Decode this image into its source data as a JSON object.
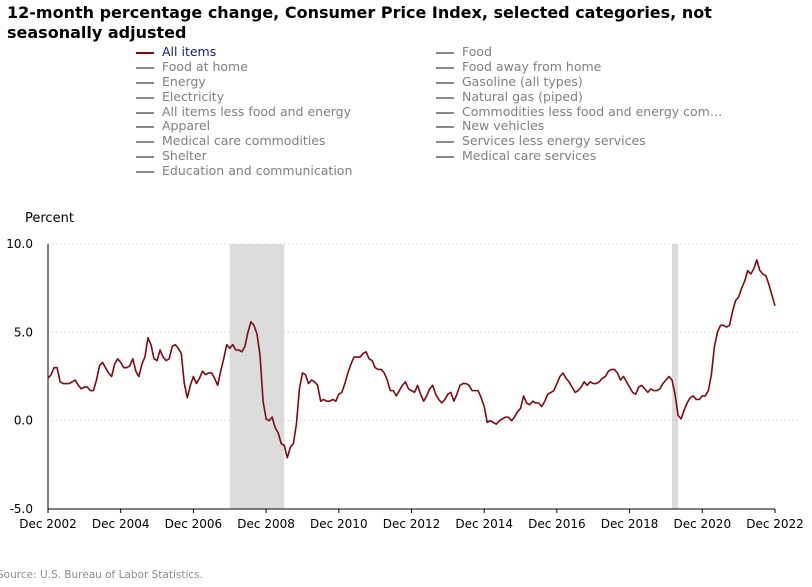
{
  "title": "12-month percentage change, Consumer Price Index, selected categories, not seasonally adjusted",
  "source": "Source: U.S. Bureau of Labor Statistics.",
  "legend": {
    "left": [
      {
        "label": "All items",
        "active": true
      },
      {
        "label": "Food at home",
        "active": false
      },
      {
        "label": "Energy",
        "active": false
      },
      {
        "label": "Electricity",
        "active": false
      },
      {
        "label": "All items less food and energy",
        "active": false
      },
      {
        "label": "Apparel",
        "active": false
      },
      {
        "label": "Medical care commodities",
        "active": false
      },
      {
        "label": "Shelter",
        "active": false
      },
      {
        "label": "Education and communication",
        "active": false
      }
    ],
    "right": [
      {
        "label": "Food",
        "active": false
      },
      {
        "label": "Food away from home",
        "active": false
      },
      {
        "label": "Gasoline (all types)",
        "active": false
      },
      {
        "label": "Natural gas (piped)",
        "active": false
      },
      {
        "label": "Commodities less food and energy com…",
        "active": false
      },
      {
        "label": "New vehicles",
        "active": false
      },
      {
        "label": "Services less energy services",
        "active": false
      },
      {
        "label": "Medical care services",
        "active": false
      }
    ]
  },
  "colors": {
    "series": "#7b0a17",
    "recession": "#dcdcdc",
    "grid": "#c8c8c8",
    "axis": "#000000",
    "legend_active_text": "#1a1a6e",
    "legend_inactive": "#808080"
  },
  "chart_data": {
    "type": "line",
    "ylabel": "Percent",
    "ylim": [
      -5.0,
      10.0
    ],
    "yticks": [
      "10.0",
      "5.0",
      "0.0",
      "-5.0"
    ],
    "ytick_values": [
      10.0,
      5.0,
      0.0,
      -5.0
    ],
    "xlim": [
      "Dec 2002",
      "Dec 2022"
    ],
    "xticks": [
      "Dec 2002",
      "Dec 2004",
      "Dec 2006",
      "Dec 2008",
      "Dec 2010",
      "Dec 2012",
      "Dec 2014",
      "Dec 2016",
      "Dec 2018",
      "Dec 2020",
      "Dec 2022"
    ],
    "grid": "horizontal dotted",
    "recessions": [
      {
        "start": "Dec 2007",
        "end": "Jun 2009"
      },
      {
        "start": "Feb 2020",
        "end": "Apr 2020"
      }
    ],
    "series": [
      {
        "name": "All items",
        "points": [
          [
            "Dec 2002",
            2.4
          ],
          [
            "Jan 2003",
            2.6
          ],
          [
            "Feb 2003",
            3.0
          ],
          [
            "Mar 2003",
            3.0
          ],
          [
            "Apr 2003",
            2.2
          ],
          [
            "May 2003",
            2.1
          ],
          [
            "Jun 2003",
            2.1
          ],
          [
            "Jul 2003",
            2.1
          ],
          [
            "Aug 2003",
            2.2
          ],
          [
            "Sep 2003",
            2.3
          ],
          [
            "Oct 2003",
            2.0
          ],
          [
            "Nov 2003",
            1.8
          ],
          [
            "Dec 2003",
            1.9
          ],
          [
            "Jan 2004",
            1.9
          ],
          [
            "Feb 2004",
            1.7
          ],
          [
            "Mar 2004",
            1.7
          ],
          [
            "Apr 2004",
            2.3
          ],
          [
            "May 2004",
            3.1
          ],
          [
            "Jun 2004",
            3.3
          ],
          [
            "Jul 2004",
            3.0
          ],
          [
            "Aug 2004",
            2.7
          ],
          [
            "Sep 2004",
            2.5
          ],
          [
            "Oct 2004",
            3.2
          ],
          [
            "Nov 2004",
            3.5
          ],
          [
            "Dec 2004",
            3.3
          ],
          [
            "Jan 2005",
            3.0
          ],
          [
            "Feb 2005",
            3.0
          ],
          [
            "Mar 2005",
            3.1
          ],
          [
            "Apr 2005",
            3.5
          ],
          [
            "May 2005",
            2.8
          ],
          [
            "Jun 2005",
            2.5
          ],
          [
            "Jul 2005",
            3.2
          ],
          [
            "Aug 2005",
            3.6
          ],
          [
            "Sep 2005",
            4.7
          ],
          [
            "Oct 2005",
            4.3
          ],
          [
            "Nov 2005",
            3.5
          ],
          [
            "Dec 2005",
            3.4
          ],
          [
            "Jan 2006",
            4.0
          ],
          [
            "Feb 2006",
            3.6
          ],
          [
            "Mar 2006",
            3.4
          ],
          [
            "Apr 2006",
            3.5
          ],
          [
            "May 2006",
            4.2
          ],
          [
            "Jun 2006",
            4.3
          ],
          [
            "Jul 2006",
            4.1
          ],
          [
            "Aug 2006",
            3.8
          ],
          [
            "Sep 2006",
            2.1
          ],
          [
            "Oct 2006",
            1.3
          ],
          [
            "Nov 2006",
            2.0
          ],
          [
            "Dec 2006",
            2.5
          ],
          [
            "Jan 2007",
            2.1
          ],
          [
            "Feb 2007",
            2.4
          ],
          [
            "Mar 2007",
            2.8
          ],
          [
            "Apr 2007",
            2.6
          ],
          [
            "May 2007",
            2.7
          ],
          [
            "Jun 2007",
            2.7
          ],
          [
            "Jul 2007",
            2.4
          ],
          [
            "Aug 2007",
            2.0
          ],
          [
            "Sep 2007",
            2.8
          ],
          [
            "Oct 2007",
            3.5
          ],
          [
            "Nov 2007",
            4.3
          ],
          [
            "Dec 2007",
            4.1
          ],
          [
            "Jan 2008",
            4.3
          ],
          [
            "Feb 2008",
            4.0
          ],
          [
            "Mar 2008",
            4.0
          ],
          [
            "Apr 2008",
            3.9
          ],
          [
            "May 2008",
            4.2
          ],
          [
            "Jun 2008",
            5.0
          ],
          [
            "Jul 2008",
            5.6
          ],
          [
            "Aug 2008",
            5.4
          ],
          [
            "Sep 2008",
            4.9
          ],
          [
            "Oct 2008",
            3.7
          ],
          [
            "Nov 2008",
            1.1
          ],
          [
            "Dec 2008",
            0.1
          ],
          [
            "Jan 2009",
            0.0
          ],
          [
            "Feb 2009",
            0.2
          ],
          [
            "Mar 2009",
            -0.4
          ],
          [
            "Apr 2009",
            -0.7
          ],
          [
            "May 2009",
            -1.3
          ],
          [
            "Jun 2009",
            -1.4
          ],
          [
            "Jul 2009",
            -2.1
          ],
          [
            "Aug 2009",
            -1.5
          ],
          [
            "Sep 2009",
            -1.3
          ],
          [
            "Oct 2009",
            -0.2
          ],
          [
            "Nov 2009",
            1.8
          ],
          [
            "Dec 2009",
            2.7
          ],
          [
            "Jan 2010",
            2.6
          ],
          [
            "Feb 2010",
            2.1
          ],
          [
            "Mar 2010",
            2.3
          ],
          [
            "Apr 2010",
            2.2
          ],
          [
            "May 2010",
            2.0
          ],
          [
            "Jun 2010",
            1.1
          ],
          [
            "Jul 2010",
            1.2
          ],
          [
            "Aug 2010",
            1.1
          ],
          [
            "Sep 2010",
            1.1
          ],
          [
            "Oct 2010",
            1.2
          ],
          [
            "Nov 2010",
            1.1
          ],
          [
            "Dec 2010",
            1.5
          ],
          [
            "Jan 2011",
            1.6
          ],
          [
            "Feb 2011",
            2.1
          ],
          [
            "Mar 2011",
            2.7
          ],
          [
            "Apr 2011",
            3.2
          ],
          [
            "May 2011",
            3.6
          ],
          [
            "Jun 2011",
            3.6
          ],
          [
            "Jul 2011",
            3.6
          ],
          [
            "Aug 2011",
            3.8
          ],
          [
            "Sep 2011",
            3.9
          ],
          [
            "Oct 2011",
            3.5
          ],
          [
            "Nov 2011",
            3.4
          ],
          [
            "Dec 2011",
            3.0
          ],
          [
            "Jan 2012",
            2.9
          ],
          [
            "Feb 2012",
            2.9
          ],
          [
            "Mar 2012",
            2.7
          ],
          [
            "Apr 2012",
            2.3
          ],
          [
            "May 2012",
            1.7
          ],
          [
            "Jun 2012",
            1.7
          ],
          [
            "Jul 2012",
            1.4
          ],
          [
            "Aug 2012",
            1.7
          ],
          [
            "Sep 2012",
            2.0
          ],
          [
            "Oct 2012",
            2.2
          ],
          [
            "Nov 2012",
            1.8
          ],
          [
            "Dec 2012",
            1.7
          ],
          [
            "Jan 2013",
            1.6
          ],
          [
            "Feb 2013",
            2.0
          ],
          [
            "Mar 2013",
            1.5
          ],
          [
            "Apr 2013",
            1.1
          ],
          [
            "May 2013",
            1.4
          ],
          [
            "Jun 2013",
            1.8
          ],
          [
            "Jul 2013",
            2.0
          ],
          [
            "Aug 2013",
            1.5
          ],
          [
            "Sep 2013",
            1.2
          ],
          [
            "Oct 2013",
            1.0
          ],
          [
            "Nov 2013",
            1.2
          ],
          [
            "Dec 2013",
            1.5
          ],
          [
            "Jan 2014",
            1.6
          ],
          [
            "Feb 2014",
            1.1
          ],
          [
            "Mar 2014",
            1.5
          ],
          [
            "Apr 2014",
            2.0
          ],
          [
            "May 2014",
            2.1
          ],
          [
            "Jun 2014",
            2.1
          ],
          [
            "Jul 2014",
            2.0
          ],
          [
            "Aug 2014",
            1.7
          ],
          [
            "Sep 2014",
            1.7
          ],
          [
            "Oct 2014",
            1.7
          ],
          [
            "Nov 2014",
            1.3
          ],
          [
            "Dec 2014",
            0.8
          ],
          [
            "Jan 2015",
            -0.1
          ],
          [
            "Feb 2015",
            0.0
          ],
          [
            "Mar 2015",
            -0.1
          ],
          [
            "Apr 2015",
            -0.2
          ],
          [
            "May 2015",
            0.0
          ],
          [
            "Jun 2015",
            0.1
          ],
          [
            "Jul 2015",
            0.2
          ],
          [
            "Aug 2015",
            0.2
          ],
          [
            "Sep 2015",
            0.0
          ],
          [
            "Oct 2015",
            0.2
          ],
          [
            "Nov 2015",
            0.5
          ],
          [
            "Dec 2015",
            0.7
          ],
          [
            "Jan 2016",
            1.4
          ],
          [
            "Feb 2016",
            1.0
          ],
          [
            "Mar 2016",
            0.9
          ],
          [
            "Apr 2016",
            1.1
          ],
          [
            "May 2016",
            1.0
          ],
          [
            "Jun 2016",
            1.0
          ],
          [
            "Jul 2016",
            0.8
          ],
          [
            "Aug 2016",
            1.1
          ],
          [
            "Sep 2016",
            1.5
          ],
          [
            "Oct 2016",
            1.6
          ],
          [
            "Nov 2016",
            1.7
          ],
          [
            "Dec 2016",
            2.1
          ],
          [
            "Jan 2017",
            2.5
          ],
          [
            "Feb 2017",
            2.7
          ],
          [
            "Mar 2017",
            2.4
          ],
          [
            "Apr 2017",
            2.2
          ],
          [
            "May 2017",
            1.9
          ],
          [
            "Jun 2017",
            1.6
          ],
          [
            "Jul 2017",
            1.7
          ],
          [
            "Aug 2017",
            1.9
          ],
          [
            "Sep 2017",
            2.2
          ],
          [
            "Oct 2017",
            2.0
          ],
          [
            "Nov 2017",
            2.2
          ],
          [
            "Dec 2017",
            2.1
          ],
          [
            "Jan 2018",
            2.1
          ],
          [
            "Feb 2018",
            2.2
          ],
          [
            "Mar 2018",
            2.4
          ],
          [
            "Apr 2018",
            2.5
          ],
          [
            "May 2018",
            2.8
          ],
          [
            "Jun 2018",
            2.9
          ],
          [
            "Jul 2018",
            2.9
          ],
          [
            "Aug 2018",
            2.7
          ],
          [
            "Sep 2018",
            2.3
          ],
          [
            "Oct 2018",
            2.5
          ],
          [
            "Nov 2018",
            2.2
          ],
          [
            "Dec 2018",
            1.9
          ],
          [
            "Jan 2019",
            1.6
          ],
          [
            "Feb 2019",
            1.5
          ],
          [
            "Mar 2019",
            1.9
          ],
          [
            "Apr 2019",
            2.0
          ],
          [
            "May 2019",
            1.8
          ],
          [
            "Jun 2019",
            1.6
          ],
          [
            "Jul 2019",
            1.8
          ],
          [
            "Aug 2019",
            1.7
          ],
          [
            "Sep 2019",
            1.7
          ],
          [
            "Oct 2019",
            1.8
          ],
          [
            "Nov 2019",
            2.1
          ],
          [
            "Dec 2019",
            2.3
          ],
          [
            "Jan 2020",
            2.5
          ],
          [
            "Feb 2020",
            2.3
          ],
          [
            "Mar 2020",
            1.5
          ],
          [
            "Apr 2020",
            0.3
          ],
          [
            "May 2020",
            0.1
          ],
          [
            "Jun 2020",
            0.6
          ],
          [
            "Jul 2020",
            1.0
          ],
          [
            "Aug 2020",
            1.3
          ],
          [
            "Sep 2020",
            1.4
          ],
          [
            "Oct 2020",
            1.2
          ],
          [
            "Nov 2020",
            1.2
          ],
          [
            "Dec 2020",
            1.4
          ],
          [
            "Jan 2021",
            1.4
          ],
          [
            "Feb 2021",
            1.7
          ],
          [
            "Mar 2021",
            2.6
          ],
          [
            "Apr 2021",
            4.2
          ],
          [
            "May 2021",
            5.0
          ],
          [
            "Jun 2021",
            5.4
          ],
          [
            "Jul 2021",
            5.4
          ],
          [
            "Aug 2021",
            5.3
          ],
          [
            "Sep 2021",
            5.4
          ],
          [
            "Oct 2021",
            6.2
          ],
          [
            "Nov 2021",
            6.8
          ],
          [
            "Dec 2021",
            7.0
          ],
          [
            "Jan 2022",
            7.5
          ],
          [
            "Feb 2022",
            7.9
          ],
          [
            "Mar 2022",
            8.5
          ],
          [
            "Apr 2022",
            8.3
          ],
          [
            "May 2022",
            8.6
          ],
          [
            "Jun 2022",
            9.1
          ],
          [
            "Jul 2022",
            8.5
          ],
          [
            "Aug 2022",
            8.3
          ],
          [
            "Sep 2022",
            8.2
          ],
          [
            "Oct 2022",
            7.7
          ],
          [
            "Nov 2022",
            7.1
          ],
          [
            "Dec 2022",
            6.5
          ]
        ]
      }
    ]
  }
}
